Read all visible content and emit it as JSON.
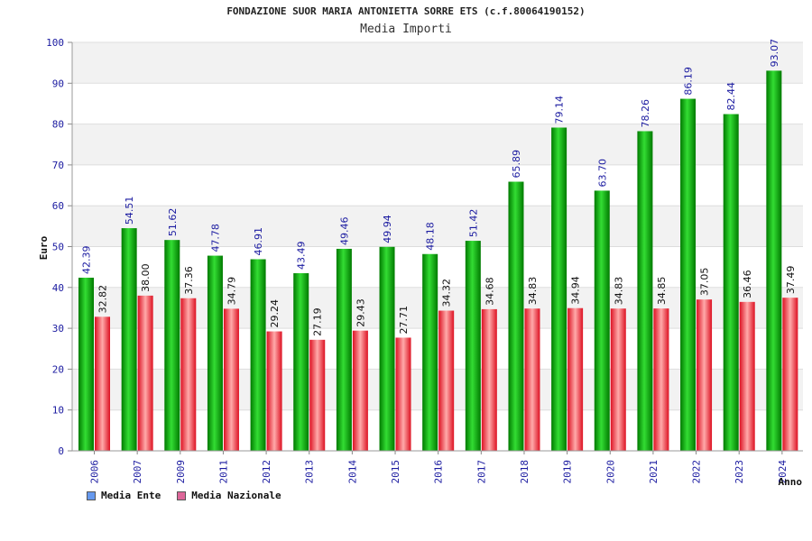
{
  "chart_data": {
    "type": "bar",
    "title": "FONDAZIONE SUOR MARIA ANTONIETTA SORRE ETS (c.f.80064190152)",
    "subtitle": "Media Importi",
    "xlabel": "Anno",
    "ylabel": "Euro",
    "ylim": [
      0,
      100
    ],
    "yticks": [
      "0",
      "10",
      "20",
      "30",
      "40",
      "50",
      "60",
      "70",
      "80",
      "90",
      "100"
    ],
    "grid": true,
    "legend_position": "bottom-left",
    "categories": [
      "2006",
      "2007",
      "2009",
      "2011",
      "2012",
      "2013",
      "2014",
      "2015",
      "2016",
      "2017",
      "2018",
      "2019",
      "2020",
      "2021",
      "2022",
      "2023",
      "2024"
    ],
    "series": [
      {
        "name": "Media Ente",
        "color": "#00aa00",
        "values": [
          42.39,
          54.51,
          51.62,
          47.78,
          46.91,
          43.49,
          49.46,
          49.94,
          48.18,
          51.42,
          65.89,
          79.14,
          63.7,
          78.26,
          86.19,
          82.44,
          93.07
        ],
        "labels": [
          "42.39",
          "54.51",
          "51.62",
          "47.78",
          "46.91",
          "43.49",
          "49.46",
          "49.94",
          "48.18",
          "51.42",
          "65.89",
          "79.14",
          "63.70",
          "78.26",
          "86.19",
          "82.44",
          "93.07"
        ]
      },
      {
        "name": "Media Nazionale",
        "color": "#e83040",
        "values": [
          32.82,
          38.0,
          37.36,
          34.79,
          29.24,
          27.19,
          29.43,
          27.71,
          34.32,
          34.68,
          34.83,
          34.94,
          34.83,
          34.85,
          37.05,
          36.46,
          37.49
        ],
        "labels": [
          "32.82",
          "38.00",
          "37.36",
          "34.79",
          "29.24",
          "27.19",
          "29.43",
          "27.71",
          "34.32",
          "34.68",
          "34.83",
          "34.94",
          "34.83",
          "34.85",
          "37.05",
          "36.46",
          "37.49"
        ]
      }
    ]
  },
  "legend": {
    "items": [
      {
        "label": "Media Ente",
        "swatch": "#6699ee"
      },
      {
        "label": "Media Nazionale",
        "swatch": "#dd6699"
      }
    ]
  }
}
